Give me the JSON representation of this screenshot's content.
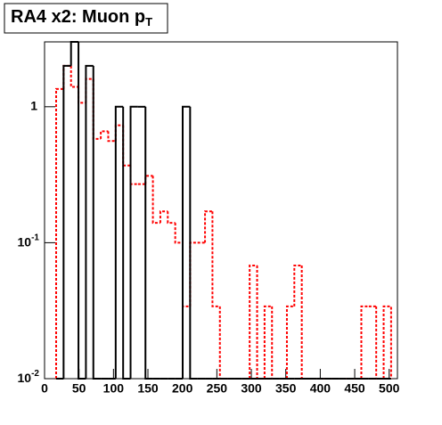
{
  "chart_data": {
    "type": "histogram",
    "title": "RA4 x2: Muon p",
    "title_subscript": "T",
    "bins": [
      16.8,
      27.6,
      38.4,
      49.2,
      60,
      70.8,
      81.6,
      92.4,
      103.2,
      114,
      124.8,
      135.6,
      146.4,
      157.2,
      168,
      178.8,
      189.6,
      200.4,
      211.2,
      222,
      232.8,
      243.6,
      254.4,
      265.2,
      276,
      286.8,
      297.6,
      308.4,
      319.2,
      330,
      340.8,
      351.6,
      362.4,
      373.2,
      384,
      394.8,
      405.6,
      416.4,
      427.2,
      438,
      448.8,
      459.6,
      470.4,
      481.2,
      492,
      502.8
    ],
    "series": [
      {
        "color": "#ff0000",
        "dashed": true,
        "values": [
          1.35,
          2,
          1.4,
          1.07,
          1.6,
          0.58,
          0.66,
          0.56,
          0.73,
          0.37,
          0.27,
          0.27,
          0.31,
          0.14,
          0.17,
          0.14,
          0.1,
          0.034,
          0.1,
          0.1,
          0.17,
          0.034,
          0,
          0,
          0,
          0,
          0.068,
          0,
          0.034,
          0,
          0,
          0.034,
          0.068,
          0,
          0,
          0,
          0,
          0,
          0,
          0,
          0,
          0.034,
          0.034,
          0,
          0.034
        ]
      },
      {
        "color": "#000000",
        "dashed": false,
        "values": [
          0,
          2,
          3,
          0,
          2,
          0,
          0,
          0,
          1,
          0,
          1,
          1,
          0,
          0,
          0,
          0,
          0,
          1,
          0,
          0,
          0,
          0,
          0,
          0,
          0,
          0,
          0,
          0,
          0,
          0,
          0,
          0,
          0,
          0,
          0,
          0,
          0,
          0,
          0,
          0,
          0,
          0,
          0,
          0,
          0
        ]
      }
    ],
    "xlim": [
      0,
      512
    ],
    "xticks": [
      0,
      50,
      100,
      150,
      200,
      250,
      300,
      350,
      400,
      450,
      500
    ],
    "ylim": [
      0.01,
      3
    ],
    "log_y": true,
    "yticks": [
      {
        "value": 0.01,
        "label": "10",
        "exponent": "-2"
      },
      {
        "value": 0.1,
        "label": "10",
        "exponent": "-1"
      },
      1
    ]
  }
}
